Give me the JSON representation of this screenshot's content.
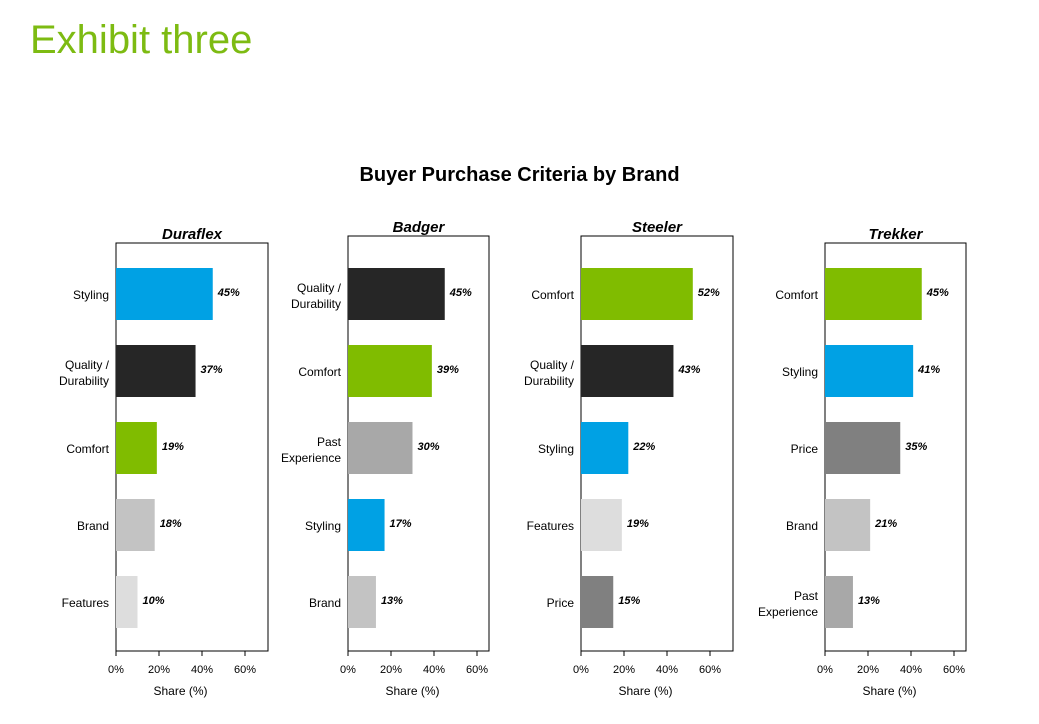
{
  "header": {
    "exhibit_title": "Exhibit three"
  },
  "chart_title": "Buyer Purchase Criteria by Brand",
  "colors": {
    "blue": "#00A1E4",
    "black": "#262626",
    "green": "#80BC00",
    "gray_light": "#C3C3C3",
    "gray_lighter": "#DDDDDD",
    "gray_mid": "#A8A8A8",
    "gray_dark": "#808080"
  },
  "chart_data": [
    {
      "type": "bar",
      "orientation": "horizontal",
      "title": "Duraflex",
      "xlabel": "Share (%)",
      "xlim": [
        0,
        70
      ],
      "xticks": [
        "0%",
        "20%",
        "40%",
        "60%"
      ],
      "categories": [
        "Styling",
        "Quality / Durability",
        "Comfort",
        "Brand",
        "Features"
      ],
      "values": [
        45,
        37,
        19,
        18,
        10
      ],
      "labels": [
        "45%",
        "37%",
        "19%",
        "18%",
        "10%"
      ],
      "bar_colors": [
        "#00A1E4",
        "#262626",
        "#80BC00",
        "#C3C3C3",
        "#DDDDDD"
      ]
    },
    {
      "type": "bar",
      "orientation": "horizontal",
      "title": "Badger",
      "xlabel": "Share (%)",
      "xlim": [
        0,
        70
      ],
      "xticks": [
        "0%",
        "20%",
        "40%",
        "60%"
      ],
      "categories": [
        "Quality / Durability",
        "Comfort",
        "Past Experience",
        "Styling",
        "Brand"
      ],
      "values": [
        45,
        39,
        30,
        17,
        13
      ],
      "labels": [
        "45%",
        "39%",
        "30%",
        "17%",
        "13%"
      ],
      "bar_colors": [
        "#262626",
        "#80BC00",
        "#A8A8A8",
        "#00A1E4",
        "#C3C3C3"
      ]
    },
    {
      "type": "bar",
      "orientation": "horizontal",
      "title": "Steeler",
      "xlabel": "Share (%)",
      "xlim": [
        0,
        70
      ],
      "xticks": [
        "0%",
        "20%",
        "40%",
        "60%"
      ],
      "categories": [
        "Comfort",
        "Quality / Durability",
        "Styling",
        "Features",
        "Price"
      ],
      "values": [
        52,
        43,
        22,
        19,
        15
      ],
      "labels": [
        "52%",
        "43%",
        "22%",
        "19%",
        "15%"
      ],
      "bar_colors": [
        "#80BC00",
        "#262626",
        "#00A1E4",
        "#DDDDDD",
        "#808080"
      ]
    },
    {
      "type": "bar",
      "orientation": "horizontal",
      "title": "Trekker",
      "xlabel": "Share (%)",
      "xlim": [
        0,
        70
      ],
      "xticks": [
        "0%",
        "20%",
        "40%",
        "60%"
      ],
      "categories": [
        "Comfort",
        "Styling",
        "Price",
        "Brand",
        "Past Experience"
      ],
      "values": [
        45,
        41,
        35,
        21,
        13
      ],
      "labels": [
        "45%",
        "41%",
        "35%",
        "21%",
        "13%"
      ],
      "bar_colors": [
        "#80BC00",
        "#00A1E4",
        "#808080",
        "#C3C3C3",
        "#A8A8A8"
      ]
    }
  ]
}
